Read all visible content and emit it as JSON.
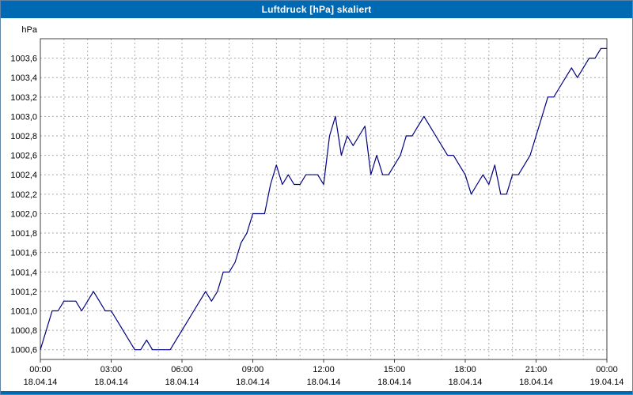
{
  "window": {
    "title": "Luftdruck [hPa] skaliert"
  },
  "colors": {
    "titlebar": "#0069b4",
    "line": "#000080",
    "grid": "#aaaaaa",
    "plot_border": "#404040",
    "tick_text": "#000000",
    "background": "#ffffff"
  },
  "chart_data": {
    "type": "line",
    "title": "Luftdruck [hPa] skaliert",
    "ylabel": "hPa",
    "xlabel": "",
    "grid": true,
    "legend": "none",
    "x_start_hour": 0,
    "sample_interval_minutes": 15,
    "xlim": [
      0,
      24
    ],
    "ylim": [
      1000.5,
      1003.8
    ],
    "yticks": [
      1003.6,
      1003.4,
      1003.2,
      1003.0,
      1002.8,
      1002.6,
      1002.4,
      1002.2,
      1002.0,
      1001.8,
      1001.6,
      1001.4,
      1001.2,
      1001.0,
      1000.8,
      1000.6
    ],
    "ytick_labels": [
      "1003,6",
      "1003,4",
      "1003,2",
      "1003,0",
      "1002,8",
      "1002,6",
      "1002,4",
      "1002,2",
      "1002,0",
      "1001,8",
      "1001,6",
      "1001,4",
      "1001,2",
      "1001,0",
      "1000,8",
      "1000,6"
    ],
    "xticks": [
      0,
      3,
      6,
      9,
      12,
      15,
      18,
      21,
      24
    ],
    "xtick_labels": [
      "00:00",
      "03:00",
      "06:00",
      "09:00",
      "12:00",
      "15:00",
      "18:00",
      "21:00",
      "00:00"
    ],
    "xtick_dates": [
      "18.04.14",
      "18.04.14",
      "18.04.14",
      "18.04.14",
      "18.04.14",
      "18.04.14",
      "18.04.14",
      "18.04.14",
      "19.04.14"
    ],
    "minor_x_gridline_step_hours": 1,
    "values": [
      1000.6,
      1000.8,
      1001.0,
      1001.0,
      1001.1,
      1001.1,
      1001.1,
      1001.0,
      1001.1,
      1001.2,
      1001.1,
      1001.0,
      1001.0,
      1000.9,
      1000.8,
      1000.7,
      1000.6,
      1000.6,
      1000.7,
      1000.6,
      1000.6,
      1000.6,
      1000.6,
      1000.7,
      1000.8,
      1000.9,
      1001.0,
      1001.1,
      1001.2,
      1001.1,
      1001.2,
      1001.4,
      1001.4,
      1001.5,
      1001.7,
      1001.8,
      1002.0,
      1002.0,
      1002.0,
      1002.3,
      1002.5,
      1002.3,
      1002.4,
      1002.3,
      1002.3,
      1002.4,
      1002.4,
      1002.4,
      1002.3,
      1002.8,
      1003.0,
      1002.6,
      1002.8,
      1002.7,
      1002.8,
      1002.9,
      1002.4,
      1002.6,
      1002.4,
      1002.4,
      1002.5,
      1002.6,
      1002.8,
      1002.8,
      1002.9,
      1003.0,
      1002.9,
      1002.8,
      1002.7,
      1002.6,
      1002.6,
      1002.5,
      1002.4,
      1002.2,
      1002.3,
      1002.4,
      1002.3,
      1002.5,
      1002.2,
      1002.2,
      1002.4,
      1002.4,
      1002.5,
      1002.6,
      1002.8,
      1003.0,
      1003.2,
      1003.2,
      1003.3,
      1003.4,
      1003.5,
      1003.4,
      1003.5,
      1003.6,
      1003.6,
      1003.7,
      1003.7
    ]
  }
}
